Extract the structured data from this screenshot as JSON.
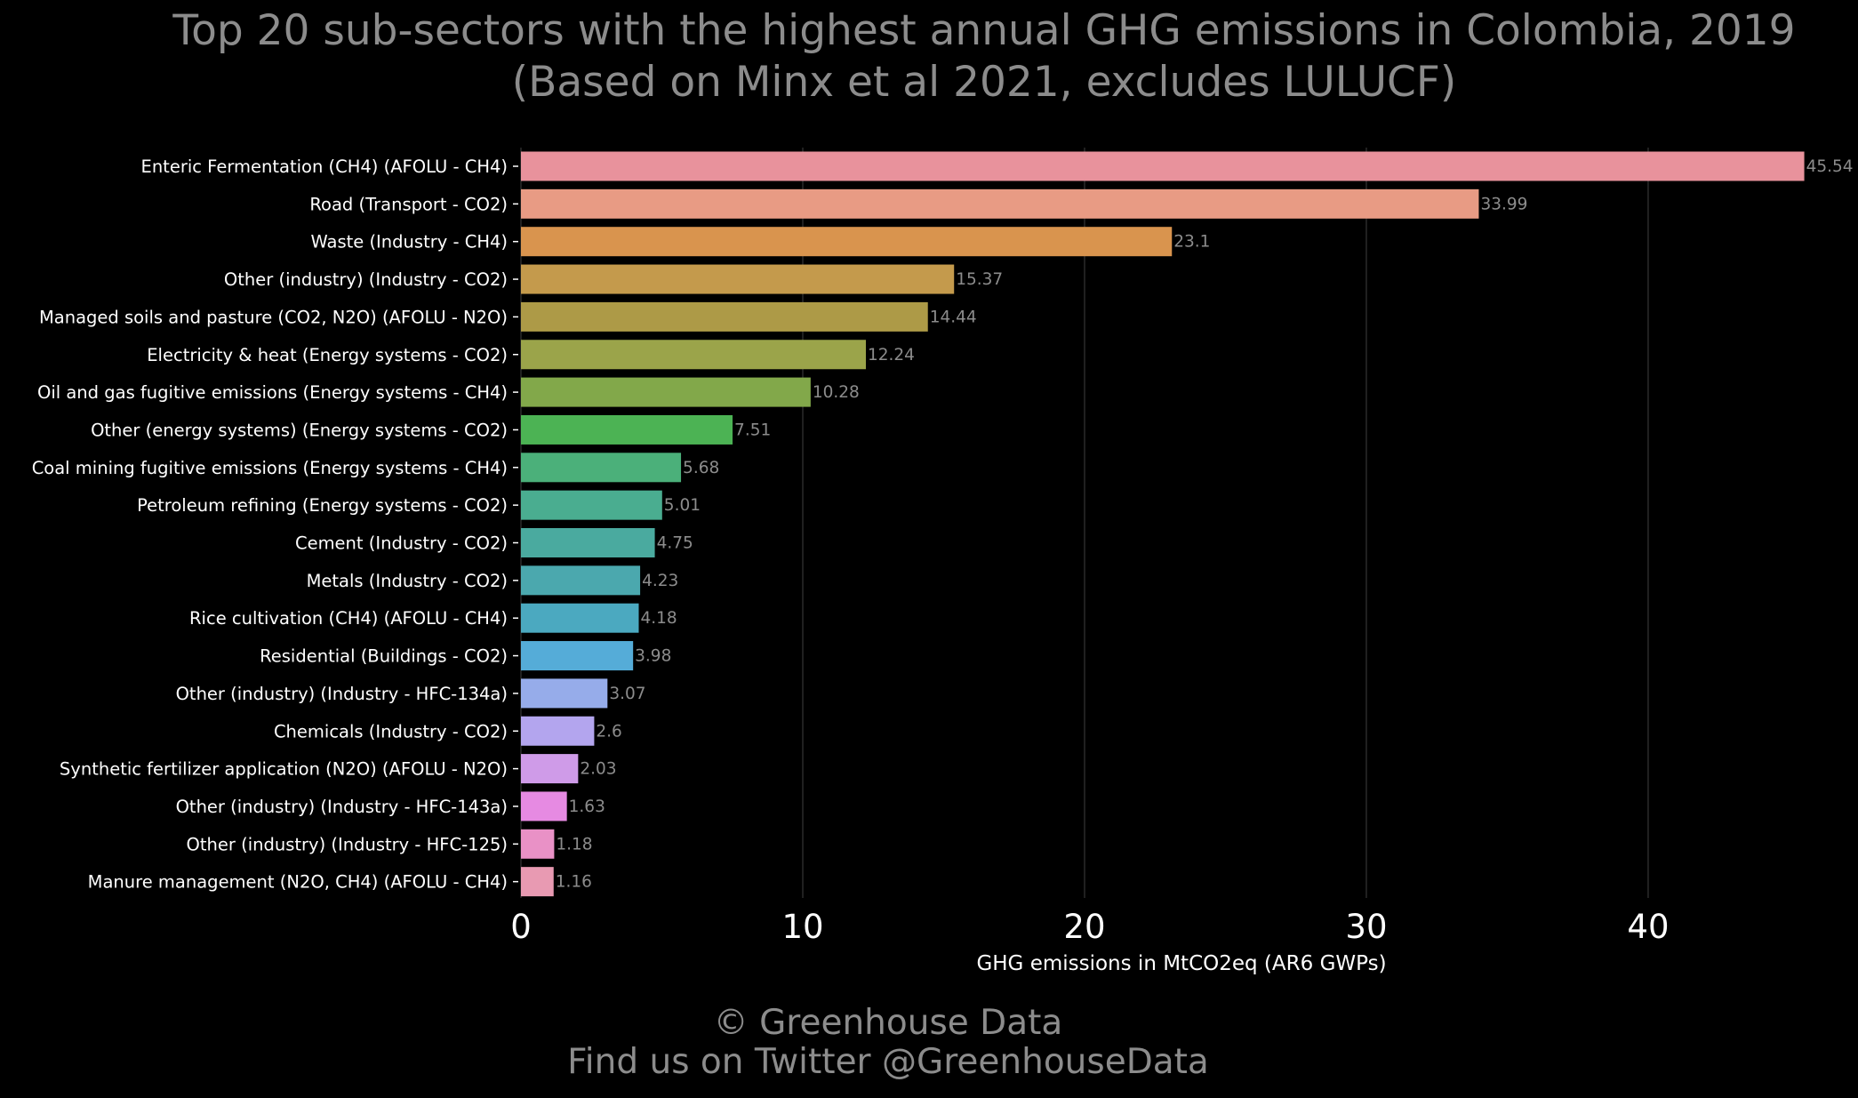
{
  "chart_data": {
    "type": "bar",
    "orientation": "horizontal",
    "title_line1": "Top 20 sub-sectors with the highest annual GHG emissions in Colombia, 2019",
    "title_line2": "(Based on Minx et al 2021, excludes LULUCF)",
    "xlabel": "GHG emissions in MtCO2eq (AR6 GWPs)",
    "ylabel": "",
    "xlim": [
      0,
      46.5
    ],
    "xticks": [
      0,
      10,
      20,
      30,
      40
    ],
    "grid": "vertical",
    "legend": "none",
    "categories": [
      "Enteric Fermentation (CH4) (AFOLU - CH4)",
      "Road (Transport - CO2)",
      "Waste (Industry - CH4)",
      "Other (industry) (Industry - CO2)",
      "Managed soils and pasture (CO2, N2O) (AFOLU - N2O)",
      "Electricity & heat (Energy systems - CO2)",
      "Oil and gas fugitive emissions (Energy systems - CH4)",
      "Other (energy systems) (Energy systems - CO2)",
      "Coal mining fugitive emissions (Energy systems - CH4)",
      "Petroleum refining (Energy systems - CO2)",
      "Cement (Industry - CO2)",
      "Metals (Industry - CO2)",
      "Rice cultivation (CH4) (AFOLU - CH4)",
      "Residential (Buildings - CO2)",
      "Other (industry) (Industry - HFC-134a)",
      "Chemicals (Industry - CO2)",
      "Synthetic fertilizer application (N2O) (AFOLU - N2O)",
      "Other (industry) (Industry - HFC-143a)",
      "Other (industry) (Industry - HFC-125)",
      "Manure management (N2O, CH4) (AFOLU - CH4)"
    ],
    "values": [
      45.54,
      33.99,
      23.1,
      15.37,
      14.44,
      12.24,
      10.28,
      7.51,
      5.68,
      5.01,
      4.75,
      4.23,
      4.18,
      3.98,
      3.07,
      2.6,
      2.03,
      1.63,
      1.18,
      1.16
    ],
    "value_labels": [
      "45.54",
      "33.99",
      "23.1",
      "15.37",
      "14.44",
      "12.24",
      "10.28",
      "7.51",
      "5.68",
      "5.01",
      "4.75",
      "4.23",
      "4.18",
      "3.98",
      "3.07",
      "2.6",
      "2.03",
      "1.63",
      "1.18",
      "1.16"
    ],
    "colors": [
      "#e8929c",
      "#e89b84",
      "#d9944e",
      "#c49a4c",
      "#ad9a47",
      "#9ba44a",
      "#82a84a",
      "#4cb354",
      "#4bb07a",
      "#4aad90",
      "#4aaa9f",
      "#4ba8ae",
      "#4ba9c0",
      "#55acd8",
      "#96acea",
      "#b3a5ee",
      "#cf9be8",
      "#e68ae2",
      "#e991c6",
      "#e89ab2"
    ]
  },
  "footer": {
    "line1": "© Greenhouse Data",
    "line2": "Find us on Twitter @GreenhouseData"
  },
  "colors": {
    "background": "#000000",
    "title_text": "#8c8c8c",
    "category_text": "#ffffff",
    "value_label_text": "#8c8c8c",
    "grid": "#2b2b2b",
    "footer_text": "#8c8c8c"
  }
}
